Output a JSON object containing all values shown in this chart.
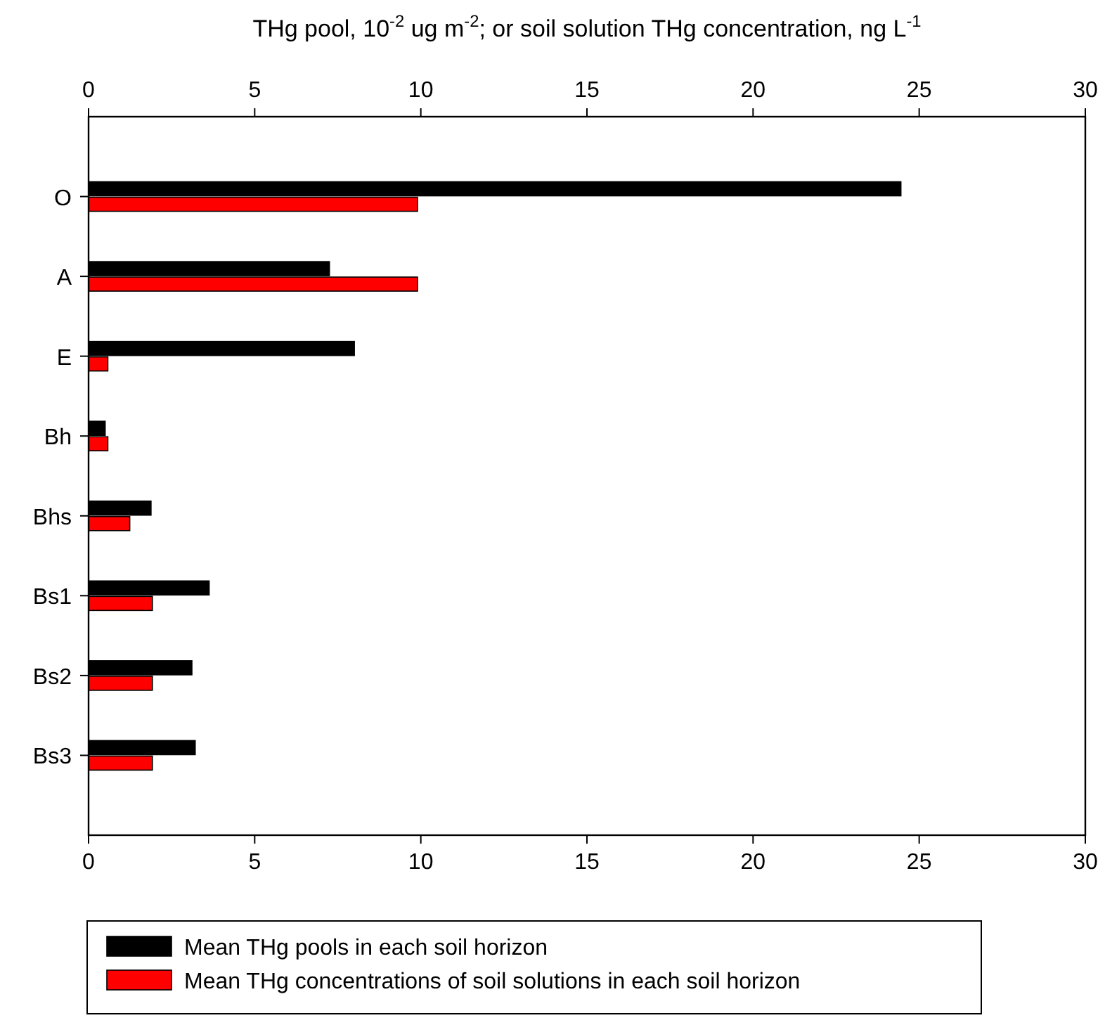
{
  "chart_data": {
    "type": "bar",
    "orientation": "horizontal",
    "title": "THg pool, 10$^{-2}$ ug m$^{-2}$; or soil solution THg concentration, ng L$^{-1}$",
    "categories": [
      "O",
      "A",
      "E",
      "Bh",
      "Bhs",
      "Bs1",
      "Bs2",
      "Bs3"
    ],
    "series": [
      {
        "name": "Mean THg pools in each soil horizon",
        "color": "#000000",
        "values": [
          24.45,
          7.25,
          8.0,
          0.5,
          1.88,
          3.63,
          3.11,
          3.21
        ]
      },
      {
        "name": "Mean THg concentrations of soil solutions in each soil horizon",
        "color": "#ff0000",
        "values": [
          9.9,
          9.9,
          0.58,
          0.58,
          1.24,
          1.92,
          1.92,
          1.92
        ]
      }
    ],
    "xlim": [
      0,
      30
    ],
    "xticks": [
      0,
      5,
      10,
      15,
      20,
      25,
      30
    ],
    "x2lim": [
      0,
      30
    ],
    "x2ticks": [
      0,
      5,
      10,
      15,
      20,
      25,
      30
    ],
    "grid": false,
    "legend": "bottom"
  }
}
